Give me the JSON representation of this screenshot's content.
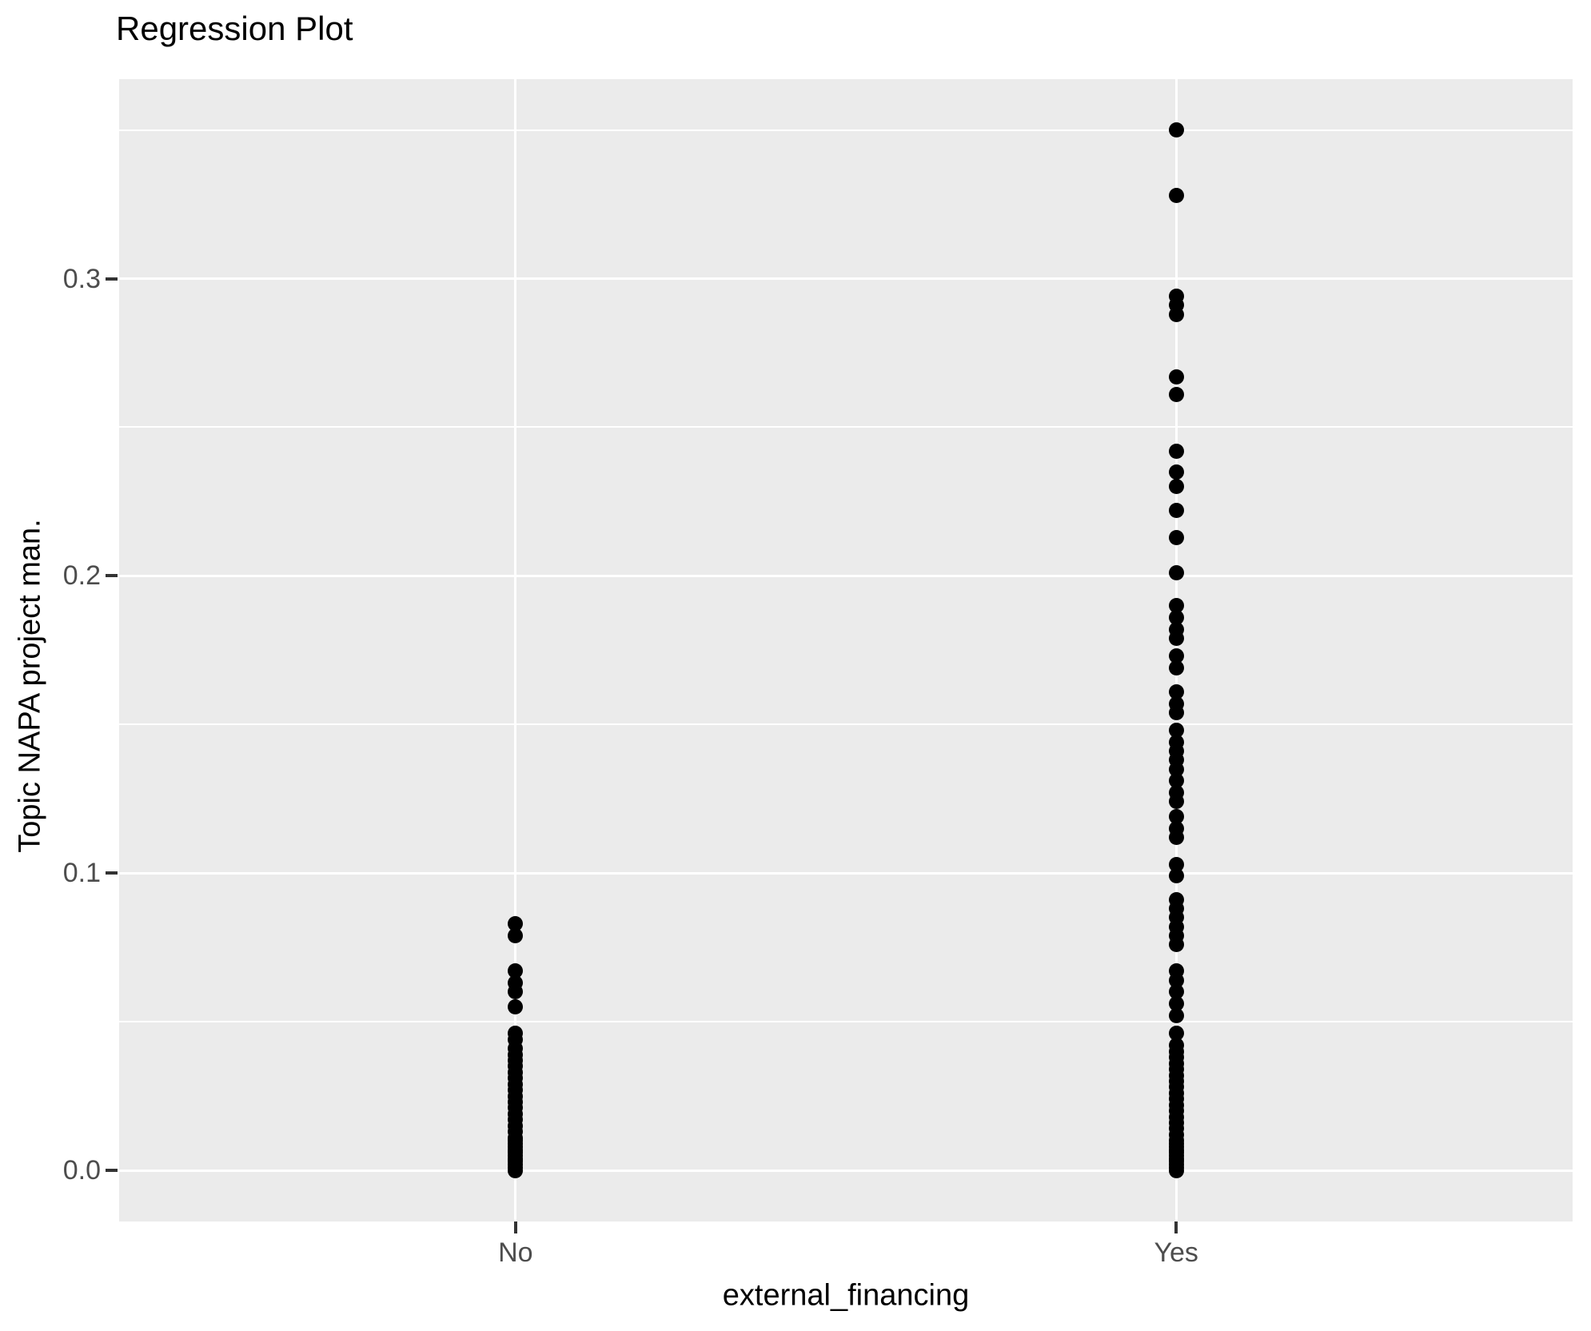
{
  "chart_data": {
    "type": "scatter",
    "title": "Regression Plot",
    "xlabel": "external_financing",
    "ylabel": "Topic NAPA project man.",
    "categories": [
      "No",
      "Yes"
    ],
    "series": [
      {
        "name": "No",
        "values": [
          0.083,
          0.079,
          0.067,
          0.063,
          0.06,
          0.055,
          0.046,
          0.044,
          0.041,
          0.039,
          0.037,
          0.035,
          0.033,
          0.031,
          0.029,
          0.027,
          0.025,
          0.023,
          0.021,
          0.019,
          0.017,
          0.015,
          0.013,
          0.011,
          0.01,
          0.009,
          0.008,
          0.007,
          0.006,
          0.005,
          0.004,
          0.003,
          0.002,
          0.001,
          0.0
        ]
      },
      {
        "name": "Yes",
        "values": [
          0.35,
          0.328,
          0.294,
          0.291,
          0.288,
          0.267,
          0.261,
          0.242,
          0.235,
          0.23,
          0.222,
          0.213,
          0.201,
          0.19,
          0.186,
          0.182,
          0.179,
          0.173,
          0.169,
          0.161,
          0.157,
          0.154,
          0.148,
          0.144,
          0.141,
          0.138,
          0.135,
          0.131,
          0.127,
          0.124,
          0.119,
          0.115,
          0.112,
          0.103,
          0.099,
          0.091,
          0.088,
          0.085,
          0.082,
          0.079,
          0.076,
          0.067,
          0.064,
          0.06,
          0.056,
          0.052,
          0.046,
          0.042,
          0.04,
          0.038,
          0.036,
          0.034,
          0.032,
          0.03,
          0.028,
          0.026,
          0.024,
          0.022,
          0.02,
          0.018,
          0.016,
          0.014,
          0.012,
          0.01,
          0.009,
          0.008,
          0.007,
          0.006,
          0.005,
          0.004,
          0.003,
          0.002,
          0.001,
          0.0
        ]
      }
    ],
    "y_ticks": [
      0.0,
      0.1,
      0.2,
      0.3
    ],
    "y_minor_ticks": [
      0.05,
      0.15,
      0.25,
      0.35
    ],
    "ylim": [
      -0.0172,
      0.3671
    ],
    "grid": true,
    "legend": "none",
    "colors": {
      "point": "#000000",
      "panel_bg": "#EBEBEB",
      "gridline": "#FFFFFF",
      "tick_label": "#4D4D4D",
      "tick_mark": "#333333",
      "text": "#000000",
      "page_bg": "#FFFFFF"
    }
  }
}
